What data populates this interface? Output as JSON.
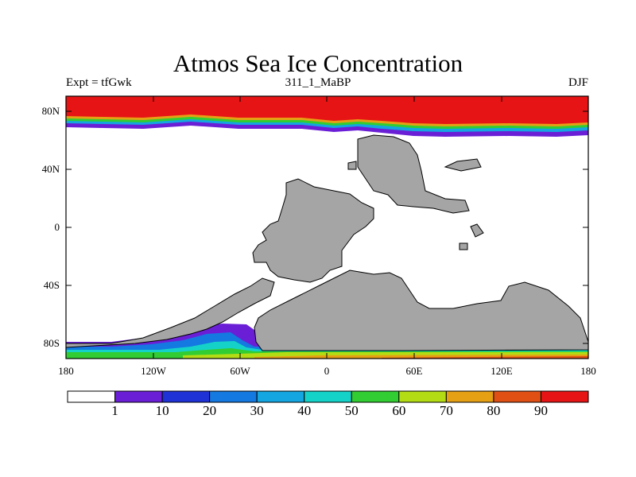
{
  "title": "Atmos Sea Ice Concentration",
  "subtitle_left": "Expt = tfGwk",
  "subtitle_center": "311_1_MaBP",
  "subtitle_right": "DJF",
  "y_ticks": [
    "80N",
    "40N",
    "0",
    "40S",
    "80S"
  ],
  "x_ticks": [
    "180",
    "120W",
    "60W",
    "0",
    "60E",
    "120E",
    "180"
  ],
  "colorbar": {
    "labels": [
      "1",
      "10",
      "20",
      "30",
      "40",
      "50",
      "60",
      "70",
      "80",
      "90"
    ],
    "colors": [
      "#ffffff",
      "#6a1fd6",
      "#1f32d6",
      "#1479e0",
      "#14a6e0",
      "#14d2c8",
      "#32cd32",
      "#b4dc14",
      "#e6a014",
      "#e05014",
      "#e61414"
    ]
  },
  "colors": {
    "land": "#a5a5a5",
    "ice_high": "#e61414"
  }
}
